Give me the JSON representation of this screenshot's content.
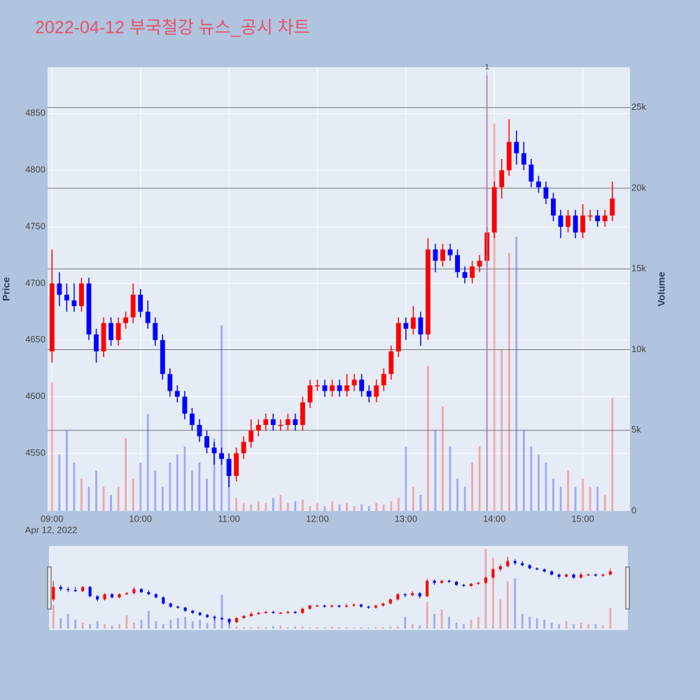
{
  "chart_data": {
    "type": "candlestick",
    "title": "2022-04-12 부국철강 뉴스_공시 차트",
    "y_label": "Price",
    "y2_label": "Volume",
    "x_date_label": "Apr 12, 2022",
    "increasing_color": "#ff0000",
    "decreasing_color": "#0000ff",
    "x": [
      "09:00",
      "09:05",
      "09:10",
      "09:15",
      "09:20",
      "09:25",
      "09:30",
      "09:35",
      "09:40",
      "09:45",
      "09:50",
      "09:55",
      "10:00",
      "10:05",
      "10:10",
      "10:15",
      "10:20",
      "10:25",
      "10:30",
      "10:35",
      "10:40",
      "10:45",
      "10:50",
      "10:55",
      "11:00",
      "11:05",
      "11:10",
      "11:15",
      "11:20",
      "11:25",
      "11:30",
      "11:35",
      "11:40",
      "11:45",
      "11:50",
      "11:55",
      "12:00",
      "12:05",
      "12:10",
      "12:15",
      "12:20",
      "12:25",
      "12:30",
      "12:35",
      "12:40",
      "12:45",
      "12:50",
      "12:55",
      "13:00",
      "13:05",
      "13:10",
      "13:15",
      "13:20",
      "13:25",
      "13:30",
      "13:35",
      "13:40",
      "13:45",
      "13:50",
      "13:55",
      "14:00",
      "14:05",
      "14:10",
      "14:15",
      "14:20",
      "14:25",
      "14:30",
      "14:35",
      "14:40",
      "14:45",
      "14:50",
      "14:55",
      "15:00",
      "15:05",
      "15:10",
      "15:15",
      "15:20"
    ],
    "open": [
      4640,
      4700,
      4690,
      4685,
      4680,
      4700,
      4655,
      4640,
      4665,
      4650,
      4665,
      4670,
      4690,
      4675,
      4665,
      4650,
      4620,
      4605,
      4600,
      4585,
      4575,
      4565,
      4555,
      4550,
      4545,
      4530,
      4550,
      4560,
      4570,
      4575,
      4580,
      4575,
      4575,
      4580,
      4575,
      4595,
      4610,
      4610,
      4605,
      4610,
      4605,
      4610,
      4615,
      4605,
      4600,
      4610,
      4620,
      4640,
      4665,
      4660,
      4670,
      4655,
      4730,
      4720,
      4730,
      4725,
      4710,
      4705,
      4715,
      4720,
      4745,
      4785,
      4800,
      4825,
      4815,
      4805,
      4790,
      4785,
      4775,
      4760,
      4750,
      4760,
      4745,
      4760,
      4760,
      4755,
      4760
    ],
    "high": [
      4730,
      4710,
      4700,
      4700,
      4705,
      4705,
      4660,
      4670,
      4670,
      4670,
      4675,
      4700,
      4695,
      4685,
      4670,
      4655,
      4625,
      4610,
      4605,
      4590,
      4580,
      4570,
      4560,
      4555,
      4550,
      4555,
      4565,
      4580,
      4580,
      4585,
      4585,
      4580,
      4585,
      4585,
      4600,
      4615,
      4615,
      4615,
      4615,
      4615,
      4620,
      4620,
      4620,
      4610,
      4615,
      4625,
      4645,
      4670,
      4670,
      4680,
      4675,
      4740,
      4735,
      4735,
      4735,
      4730,
      4715,
      4720,
      4725,
      4750,
      4790,
      4810,
      4845,
      4835,
      4825,
      4810,
      4795,
      4790,
      4780,
      4765,
      4765,
      4765,
      4770,
      4765,
      4765,
      4765,
      4790
    ],
    "low": [
      4630,
      4680,
      4675,
      4675,
      4675,
      4650,
      4630,
      4635,
      4645,
      4645,
      4660,
      4665,
      4670,
      4660,
      4645,
      4615,
      4600,
      4595,
      4580,
      4570,
      4560,
      4550,
      4540,
      4540,
      4520,
      4525,
      4545,
      4555,
      4565,
      4570,
      4570,
      4570,
      4570,
      4570,
      4570,
      4590,
      4605,
      4600,
      4600,
      4600,
      4600,
      4605,
      4600,
      4595,
      4595,
      4605,
      4615,
      4635,
      4650,
      4655,
      4645,
      4650,
      4710,
      4715,
      4720,
      4705,
      4700,
      4700,
      4710,
      4715,
      4740,
      4775,
      4795,
      4805,
      4800,
      4785,
      4780,
      4770,
      4755,
      4740,
      4745,
      4740,
      4740,
      4755,
      4750,
      4750,
      4755
    ],
    "close": [
      4700,
      4690,
      4685,
      4680,
      4700,
      4655,
      4640,
      4665,
      4650,
      4665,
      4670,
      4690,
      4675,
      4665,
      4650,
      4620,
      4605,
      4600,
      4585,
      4575,
      4565,
      4555,
      4550,
      4545,
      4530,
      4550,
      4560,
      4570,
      4575,
      4580,
      4575,
      4575,
      4580,
      4575,
      4595,
      4610,
      4610,
      4605,
      4610,
      4605,
      4610,
      4615,
      4605,
      4600,
      4610,
      4620,
      4640,
      4665,
      4660,
      4670,
      4655,
      4730,
      4720,
      4730,
      4725,
      4710,
      4705,
      4715,
      4720,
      4745,
      4785,
      4800,
      4825,
      4815,
      4805,
      4790,
      4785,
      4775,
      4760,
      4750,
      4760,
      4745,
      4760,
      4760,
      4755,
      4760,
      4775
    ],
    "volume": [
      8000,
      3500,
      5000,
      3000,
      2000,
      1500,
      2500,
      1500,
      1000,
      1500,
      4500,
      2000,
      3000,
      6000,
      2500,
      1500,
      3000,
      3500,
      4000,
      2500,
      3000,
      2000,
      4500,
      11500,
      2500,
      800,
      500,
      400,
      600,
      500,
      800,
      1000,
      500,
      600,
      700,
      300,
      500,
      300,
      600,
      400,
      500,
      300,
      400,
      300,
      500,
      400,
      600,
      800,
      4000,
      1500,
      1000,
      9000,
      5000,
      6500,
      4000,
      2000,
      1500,
      3000,
      4000,
      27000,
      24000,
      10000,
      16000,
      17000,
      5000,
      4000,
      3500,
      3000,
      2000,
      1500,
      2500,
      1500,
      2000,
      1500,
      1500,
      1000,
      7000
    ],
    "xlim": [
      "08:57",
      "15:32"
    ],
    "xticks": [
      "09:00",
      "10:00",
      "11:00",
      "12:00",
      "13:00",
      "14:00",
      "15:00"
    ],
    "ylim": [
      4499,
      4891
    ],
    "yticks": [
      4550,
      4600,
      4650,
      4700,
      4750,
      4800,
      4850
    ],
    "y2lim": [
      0,
      27500
    ],
    "y2ticks": [
      0,
      {
        "value": 5000,
        "label": "5k"
      },
      {
        "value": 10000,
        "label": "10k"
      },
      {
        "value": 15000,
        "label": "15k"
      },
      {
        "value": 20000,
        "label": "20k"
      },
      {
        "value": 25000,
        "label": "25k"
      }
    ],
    "grid": true,
    "y2grid": true,
    "annotations": [
      {
        "text": "1",
        "x": "13:55"
      }
    ]
  }
}
